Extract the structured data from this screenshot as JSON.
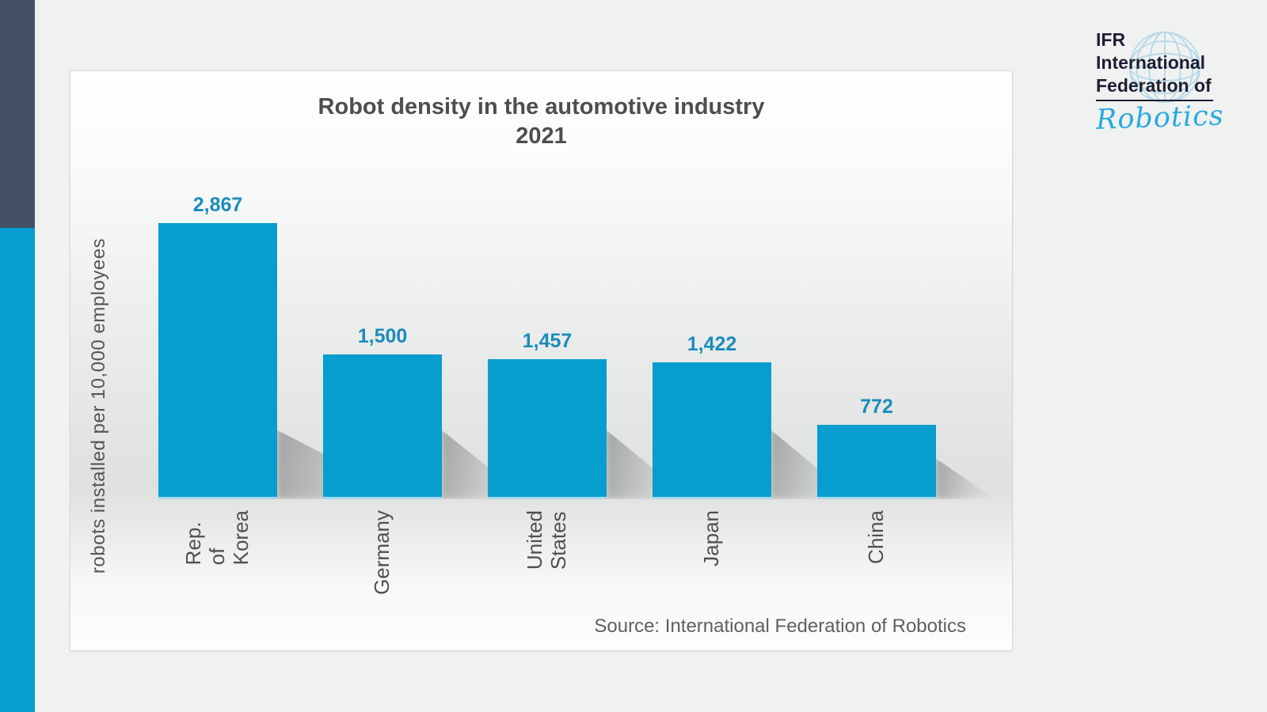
{
  "page": {
    "background": "#f0f2f2"
  },
  "decor": {
    "dark_bar_color": "#455064",
    "cyan_bar_color": "#089dcf"
  },
  "logo": {
    "line1": "IFR",
    "line2": "International",
    "line3": "Federation of",
    "script": "Robotics",
    "text_color": "#1e1e32",
    "script_color": "#29a9dd",
    "globe_icon": "globe-grid-icon",
    "globe_color": "#b7d9e9"
  },
  "chart_data": {
    "type": "bar",
    "title": "Robot density in the automotive industry",
    "subtitle": "2021",
    "ylabel": "robots installed per 10,000 employees",
    "categories": [
      "Rep. of\nKorea",
      "Germany",
      "United\nStates",
      "Japan",
      "China"
    ],
    "values": [
      2867,
      1500,
      1457,
      1422,
      772
    ],
    "value_labels": [
      "2,867",
      "1,500",
      "1,457",
      "1,422",
      "772"
    ],
    "source": "Source: International Federation of Robotics",
    "bar_color": "#089dcf",
    "value_label_color": "#1a8cba",
    "ylim": [
      0,
      3000
    ],
    "grid": false,
    "legend": null,
    "axis_ticks": "none"
  }
}
